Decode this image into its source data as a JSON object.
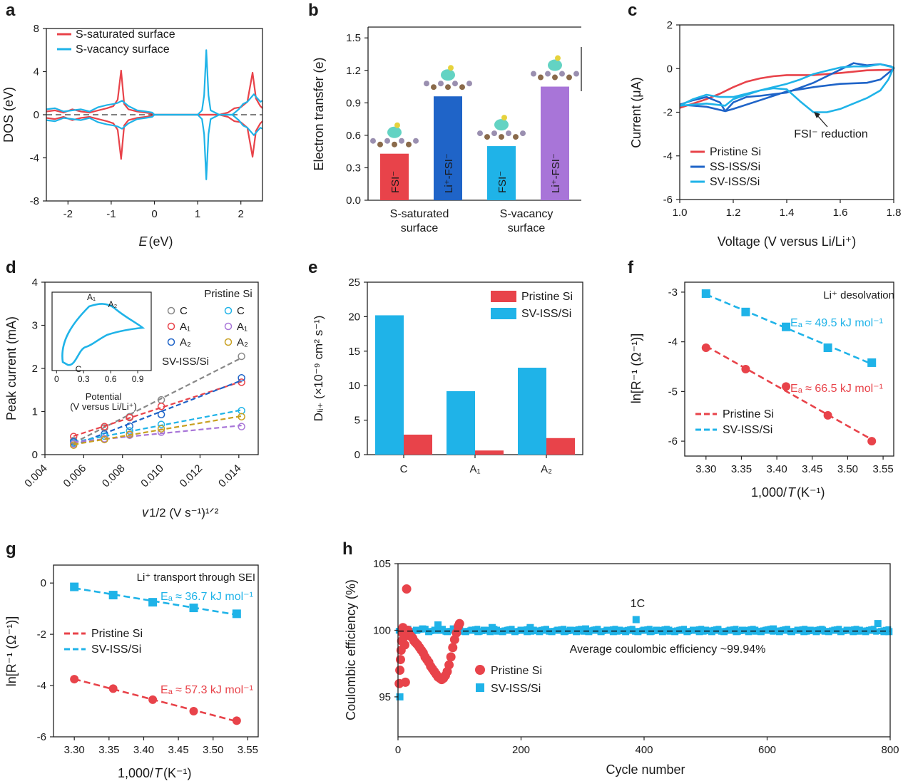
{
  "colors": {
    "red": "#e8434a",
    "blue": "#1fb3e8",
    "darkblue": "#1f64c8",
    "purple": "#a875d8",
    "gray": "#888888",
    "mustard": "#c8a020",
    "axis": "#222222"
  },
  "panels": [
    "a",
    "b",
    "c",
    "d",
    "e",
    "f",
    "g",
    "h"
  ],
  "chart_data": [
    {
      "panel": "a",
      "type": "line",
      "xlabel_italic": "E",
      "xlabel_rest": " (eV)",
      "ylabel": "DOS (eV)",
      "xlim": [
        -2.5,
        2.5
      ],
      "ylim": [
        -8,
        8
      ],
      "xticks": [
        -2,
        -1,
        0,
        1,
        2
      ],
      "yticks": [
        -8,
        -4,
        0,
        4,
        8
      ],
      "legend": [
        {
          "name": "S-saturated surface",
          "color": "#e8434a"
        },
        {
          "name": "S-vacancy surface",
          "color": "#1fb3e8"
        }
      ],
      "series": [
        {
          "name": "S-saturated surface",
          "color": "#e8434a",
          "x": [
            -2.5,
            -2.3,
            -2.1,
            -1.9,
            -1.7,
            -1.5,
            -1.3,
            -1.1,
            -0.95,
            -0.85,
            -0.77,
            -0.7,
            -0.6,
            -0.4,
            -0.2,
            -0.05,
            0,
            0.5,
            1.0,
            1.5,
            1.7,
            1.85,
            2.0,
            2.15,
            2.27,
            2.35,
            2.45,
            2.5
          ],
          "y": [
            0.3,
            0.4,
            0.2,
            0.5,
            0.3,
            0.2,
            0.4,
            0.6,
            0.8,
            1.4,
            4.1,
            1.0,
            0.5,
            0.3,
            0.2,
            0.1,
            0,
            0,
            0,
            0,
            0.2,
            0.6,
            0.7,
            1.2,
            3.9,
            1.5,
            0.8,
            0.6
          ]
        },
        {
          "name": "S-vacancy surface",
          "color": "#1fb3e8",
          "x": [
            -2.5,
            -2.3,
            -2.1,
            -1.9,
            -1.7,
            -1.5,
            -1.3,
            -1.1,
            -0.95,
            -0.85,
            -0.75,
            -0.6,
            -0.4,
            -0.2,
            -0.05,
            0,
            0.5,
            1.0,
            1.1,
            1.15,
            1.2,
            1.25,
            1.3,
            1.5,
            1.8,
            1.95,
            2.05,
            2.15,
            2.3,
            2.45,
            2.5
          ],
          "y": [
            0.5,
            0.6,
            0.3,
            0.4,
            0.5,
            0.3,
            0.7,
            0.9,
            1.0,
            1.1,
            1.3,
            0.8,
            0.4,
            0.3,
            0.2,
            0,
            0,
            0,
            0.4,
            1.8,
            6.0,
            1.8,
            0.4,
            0,
            0,
            0.5,
            1.0,
            1.2,
            1.9,
            1.2,
            1.3
          ]
        }
      ]
    },
    {
      "panel": "b",
      "type": "bar",
      "ylabel": "Electron transfer (e)",
      "ylim": [
        0,
        1.6
      ],
      "yticks": [
        0,
        0.3,
        0.6,
        0.9,
        1.2,
        1.5
      ],
      "groups": [
        {
          "line1": "S-saturated",
          "line2": "surface"
        },
        {
          "line1": "S-vacancy",
          "line2": "surface"
        }
      ],
      "bars": [
        {
          "label": "FSI⁻",
          "value": 0.43,
          "color": "#e8434a"
        },
        {
          "label": "Li⁺-FSI⁻",
          "value": 0.96,
          "color": "#1f64c8"
        },
        {
          "label": "FSI⁻",
          "value": 0.5,
          "color": "#1fb3e8"
        },
        {
          "label": "Li⁺-FSI⁻",
          "value": 1.05,
          "color": "#a875d8"
        }
      ]
    },
    {
      "panel": "c",
      "type": "line",
      "xlabel": "Voltage (V versus Li/Li⁺)",
      "ylabel": "Current (μA)",
      "xlim": [
        1.0,
        1.8
      ],
      "ylim": [
        -6,
        2
      ],
      "xticks": [
        1.0,
        1.2,
        1.4,
        1.6,
        1.8
      ],
      "yticks": [
        -6,
        -4,
        -2,
        0,
        2
      ],
      "annotation": "FSI⁻ reduction",
      "series": [
        {
          "name": "Pristine Si",
          "color": "#e8434a",
          "x": [
            1.0,
            1.05,
            1.1,
            1.15,
            1.2,
            1.25,
            1.3,
            1.35,
            1.4,
            1.5,
            1.6,
            1.7,
            1.8
          ],
          "y": [
            -1.8,
            -1.6,
            -1.4,
            -1.15,
            -0.85,
            -0.6,
            -0.45,
            -0.35,
            -0.3,
            -0.3,
            -0.2,
            -0.08,
            -0.05
          ]
        },
        {
          "name": "SS-ISS/Si",
          "color": "#1f64c8",
          "x": [
            1.0,
            1.05,
            1.1,
            1.15,
            1.17,
            1.2,
            1.25,
            1.3,
            1.4,
            1.5,
            1.6,
            1.65,
            1.7,
            1.75,
            1.79,
            1.8,
            1.75,
            1.7,
            1.6,
            1.5,
            1.4,
            1.3,
            1.2,
            1.17,
            1.1,
            1.05,
            1.0
          ],
          "y": [
            -1.65,
            -1.45,
            -1.3,
            -1.55,
            -1.95,
            -1.55,
            -1.3,
            -1.25,
            -1.1,
            -0.65,
            -0.05,
            0.25,
            0.15,
            0.2,
            0.1,
            0,
            -0.5,
            -0.65,
            -0.7,
            -0.85,
            -1.05,
            -1.45,
            -1.85,
            -1.95,
            -1.75,
            -1.7,
            -1.65
          ]
        },
        {
          "name": "SV-ISS/Si",
          "color": "#1fb3e8",
          "x": [
            1.0,
            1.05,
            1.1,
            1.15,
            1.2,
            1.3,
            1.35,
            1.4,
            1.45,
            1.5,
            1.55,
            1.6,
            1.7,
            1.75,
            1.78,
            1.8,
            1.75,
            1.7,
            1.65,
            1.6,
            1.55,
            1.5,
            1.45,
            1.4,
            1.35,
            1.3,
            1.2,
            1.17,
            1.1,
            1.0
          ],
          "y": [
            -1.7,
            -1.4,
            -1.2,
            -1.3,
            -1.3,
            -1.0,
            -0.9,
            -0.95,
            -1.5,
            -2.0,
            -2.0,
            -1.85,
            -1.35,
            -1.0,
            -0.5,
            0.05,
            0.2,
            0.1,
            0.1,
            0.05,
            -0.1,
            -0.25,
            -0.5,
            -0.7,
            -0.85,
            -1.0,
            -1.4,
            -1.7,
            -1.6,
            -1.7
          ]
        }
      ]
    },
    {
      "panel": "d",
      "type": "scatter",
      "xlabel": "v¹ᐟ² (V s⁻¹)¹ᐟ²",
      "ylabel": "Peak current (mA)",
      "xlim": [
        0.004,
        0.015
      ],
      "ylim": [
        0,
        4
      ],
      "xticks": [
        0.004,
        0.006,
        0.008,
        0.01,
        0.012,
        0.014
      ],
      "yticks": [
        0,
        1,
        2,
        3,
        4
      ],
      "legend_title": "Pristine Si",
      "second_title": "SV-ISS/Si",
      "legend_left": [
        {
          "name": "C",
          "color": "#888888"
        },
        {
          "name": "A₁",
          "color": "#e8434a"
        },
        {
          "name": "A₂",
          "color": "#1f64c8"
        }
      ],
      "legend_right": [
        {
          "name": "C",
          "color": "#1fb3e8"
        },
        {
          "name": "A₁",
          "color": "#a875d8"
        },
        {
          "name": "A₂",
          "color": "#c8a020"
        }
      ],
      "x": [
        0.00548,
        0.00707,
        0.00837,
        0.01,
        0.01414
      ],
      "series": [
        {
          "name": "Pristine Si C",
          "color": "#888888",
          "values": [
            0.33,
            0.62,
            0.88,
            1.27,
            2.28
          ]
        },
        {
          "name": "Pristine Si A1",
          "color": "#e8434a",
          "values": [
            0.42,
            0.65,
            0.86,
            1.12,
            1.68
          ]
        },
        {
          "name": "Pristine Si A2",
          "color": "#1f64c8",
          "values": [
            0.3,
            0.48,
            0.66,
            0.93,
            1.78
          ]
        },
        {
          "name": "SV-ISS/Si C",
          "color": "#1fb3e8",
          "values": [
            0.27,
            0.43,
            0.55,
            0.7,
            1.02
          ]
        },
        {
          "name": "SV-ISS/Si A1",
          "color": "#a875d8",
          "values": [
            0.25,
            0.37,
            0.45,
            0.52,
            0.65
          ]
        },
        {
          "name": "SV-ISS/Si A2",
          "color": "#c8a020",
          "values": [
            0.22,
            0.35,
            0.47,
            0.6,
            0.88
          ]
        }
      ],
      "inset": {
        "xlabel_l1": "Potential",
        "xlabel_l2": "(V versus Li/Li⁺)",
        "xticks": [
          0,
          0.3,
          0.6,
          0.9
        ],
        "labels": [
          "A₁",
          "A₂",
          "C"
        ]
      }
    },
    {
      "panel": "e",
      "type": "bar",
      "ylabel": "Dₗᵢ₊ (×10⁻⁹ cm² s⁻¹)",
      "ylim": [
        0,
        25
      ],
      "yticks": [
        0,
        5,
        10,
        15,
        20,
        25
      ],
      "categories": [
        "C",
        "A₁",
        "A₂"
      ],
      "series": [
        {
          "name": "Pristine Si",
          "color": "#e8434a",
          "values": [
            2.9,
            0.6,
            2.4
          ]
        },
        {
          "name": "SV-ISS/Si",
          "color": "#1fb3e8",
          "values": [
            20.2,
            9.2,
            12.6
          ]
        }
      ]
    },
    {
      "panel": "f",
      "type": "scatter",
      "xlabel": "1,000/T (K⁻¹)",
      "ylabel": "ln[R⁻¹ (Ω⁻¹)]",
      "xlim": [
        3.27,
        3.565
      ],
      "ylim": [
        -6.3,
        -2.8
      ],
      "xticks": [
        3.3,
        3.35,
        3.4,
        3.45,
        3.5,
        3.55
      ],
      "yticks": [
        -6,
        -5,
        -4,
        -3
      ],
      "title": "Li⁺ desolvation",
      "ea_blue": "Eₐ ≈ 49.5 kJ mol⁻¹",
      "ea_red": "Eₐ ≈ 66.5 kJ mol⁻¹",
      "x": [
        3.3,
        3.356,
        3.413,
        3.472,
        3.534
      ],
      "series": [
        {
          "name": "Pristine Si",
          "color": "#e8434a",
          "marker": "circle",
          "values": [
            -4.12,
            -4.55,
            -4.9,
            -5.48,
            -6.0
          ]
        },
        {
          "name": "SV-ISS/Si",
          "color": "#1fb3e8",
          "marker": "square",
          "values": [
            -3.03,
            -3.4,
            -3.7,
            -4.12,
            -4.42
          ]
        }
      ]
    },
    {
      "panel": "g",
      "type": "scatter",
      "xlabel": "1,000/T (K⁻¹)",
      "ylabel": "ln[R⁻¹ (Ω⁻¹)]",
      "xlim": [
        3.27,
        3.565
      ],
      "ylim": [
        -6,
        0.7
      ],
      "xticks": [
        3.3,
        3.35,
        3.4,
        3.45,
        3.5,
        3.55
      ],
      "yticks": [
        -6,
        -4,
        -2,
        0
      ],
      "title": "Li⁺ transport through SEI",
      "ea_blue": "Eₐ ≈ 36.7 kJ mol⁻¹",
      "ea_red": "Eₐ ≈ 57.3 kJ mol⁻¹",
      "x": [
        3.3,
        3.356,
        3.413,
        3.472,
        3.534
      ],
      "series": [
        {
          "name": "Pristine Si",
          "color": "#e8434a",
          "marker": "circle",
          "values": [
            -3.75,
            -4.12,
            -4.55,
            -5.0,
            -5.37
          ]
        },
        {
          "name": "SV-ISS/Si",
          "color": "#1fb3e8",
          "marker": "square",
          "values": [
            -0.15,
            -0.47,
            -0.75,
            -0.97,
            -1.2
          ]
        }
      ]
    },
    {
      "panel": "h",
      "type": "scatter",
      "xlabel": "Cycle number",
      "ylabel": "Coulombic efficiency (%)",
      "xlim": [
        0,
        800
      ],
      "ylim": [
        92,
        105
      ],
      "xticks": [
        0,
        200,
        400,
        600,
        800
      ],
      "yticks": [
        95,
        100,
        105
      ],
      "rate_label": "1C",
      "avg_text": "Average coulombic efficiency ~99.94%",
      "avg_value": 99.94,
      "series": [
        {
          "name": "Pristine Si",
          "color": "#e8434a",
          "marker": "circle",
          "x": [
            2,
            3,
            4,
            5,
            6,
            7,
            8,
            9,
            10,
            11,
            12,
            14,
            16,
            18,
            20,
            22,
            24,
            26,
            28,
            30,
            32,
            35,
            38,
            41,
            44,
            47,
            50,
            53,
            56,
            59,
            62,
            65,
            68,
            71,
            74,
            77,
            80,
            83,
            86,
            89,
            92,
            95,
            98,
            100
          ],
          "y": [
            96.0,
            97.0,
            97.8,
            98.5,
            99.2,
            99.8,
            100.2,
            100.0,
            99.5,
            98.9,
            96.1,
            103.1,
            100.0,
            99.7,
            99.6,
            99.5,
            99.4,
            99.2,
            99.1,
            99.0,
            98.9,
            98.7,
            98.5,
            98.3,
            98.0,
            97.8,
            97.6,
            97.3,
            97.1,
            96.9,
            96.7,
            96.5,
            96.4,
            96.3,
            96.4,
            96.6,
            96.9,
            97.4,
            98.0,
            98.7,
            99.3,
            99.8,
            100.3,
            100.5
          ]
        },
        {
          "name": "SV-ISS/Si",
          "color": "#1fb3e8",
          "marker": "square",
          "x": [
            3,
            10,
            20,
            30,
            40,
            50,
            60,
            65,
            70,
            80,
            90,
            100,
            110,
            120,
            130,
            140,
            150,
            153,
            160,
            170,
            180,
            190,
            200,
            210,
            215,
            220,
            230,
            240,
            250,
            260,
            270,
            280,
            290,
            300,
            305,
            310,
            320,
            330,
            340,
            350,
            360,
            370,
            380,
            387,
            390,
            400,
            410,
            420,
            430,
            440,
            450,
            460,
            470,
            480,
            490,
            500,
            510,
            520,
            530,
            540,
            550,
            560,
            570,
            580,
            590,
            600,
            610,
            620,
            630,
            640,
            650,
            660,
            670,
            680,
            690,
            700,
            710,
            720,
            730,
            740,
            750,
            760,
            770,
            780,
            790,
            798
          ],
          "y": [
            95.0,
            100.0,
            99.9,
            100.0,
            100.1,
            99.9,
            100.0,
            100.4,
            100.0,
            99.9,
            100.1,
            100.0,
            99.9,
            100.0,
            99.9,
            100.0,
            99.9,
            100.2,
            100.0,
            99.9,
            100.0,
            99.9,
            100.0,
            99.9,
            100.2,
            100.0,
            99.9,
            100.0,
            99.9,
            100.0,
            99.9,
            100.0,
            99.9,
            100.0,
            100.1,
            99.9,
            100.0,
            99.9,
            100.0,
            99.9,
            100.0,
            99.9,
            100.0,
            100.8,
            99.9,
            100.0,
            99.9,
            100.0,
            99.9,
            100.0,
            99.9,
            100.0,
            99.9,
            100.0,
            99.9,
            100.0,
            99.9,
            100.0,
            99.9,
            100.0,
            99.9,
            100.0,
            99.9,
            100.0,
            99.9,
            100.0,
            100.1,
            99.9,
            100.0,
            99.9,
            100.0,
            99.9,
            100.0,
            99.9,
            100.0,
            99.9,
            100.0,
            99.9,
            100.0,
            99.9,
            100.0,
            99.9,
            100.0,
            100.5,
            99.9,
            99.9
          ]
        }
      ]
    }
  ]
}
